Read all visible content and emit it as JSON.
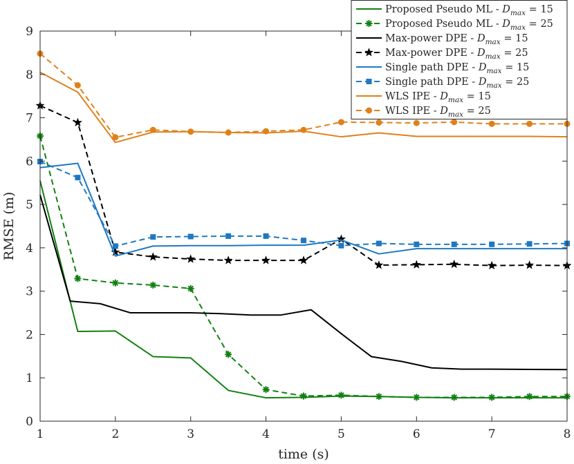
{
  "chart_data": {
    "type": "line",
    "title": "",
    "xlabel": "time (s)",
    "ylabel": "RMSE (m)",
    "xlim": [
      1,
      8
    ],
    "ylim": [
      0,
      9
    ],
    "xticks": [
      "1",
      "2",
      "3",
      "4",
      "5",
      "6",
      "7",
      "8"
    ],
    "yticks": [
      "0",
      "1",
      "2",
      "3",
      "4",
      "5",
      "6",
      "7",
      "8",
      "9"
    ],
    "grid": false,
    "legend_position": "top-right",
    "series": [
      {
        "name": "Proposed Pseudo ML - D_max = 15",
        "legend_prefix": "Proposed Pseudo ML - ",
        "legend_var": "D",
        "legend_sub": "max",
        "legend_suffix": " = 15",
        "color": "#118011",
        "dash": "solid",
        "marker": "none",
        "x": [
          1,
          1.5,
          2,
          2.5,
          3,
          3.5,
          4,
          4.5,
          5,
          5.5,
          6,
          6.5,
          7,
          7.5,
          8
        ],
        "y": [
          5.55,
          2.07,
          2.08,
          1.49,
          1.46,
          0.71,
          0.54,
          0.55,
          0.58,
          0.57,
          0.55,
          0.54,
          0.54,
          0.54,
          0.54
        ]
      },
      {
        "name": "Proposed Pseudo ML - D_max = 25",
        "legend_prefix": "Proposed Pseudo ML - ",
        "legend_var": "D",
        "legend_sub": "max",
        "legend_suffix": " = 25",
        "color": "#118011",
        "dash": "dashed",
        "marker": "asterisk",
        "x": [
          1,
          1.5,
          2,
          2.5,
          3,
          3.5,
          4,
          4.5,
          5,
          5.5,
          6,
          6.5,
          7,
          7.5,
          8
        ],
        "y": [
          6.58,
          3.29,
          3.19,
          3.14,
          3.06,
          1.54,
          0.73,
          0.58,
          0.6,
          0.57,
          0.55,
          0.55,
          0.55,
          0.57,
          0.57
        ]
      },
      {
        "name": "Max-power DPE - D_max = 15",
        "legend_prefix": "Max-power DPE - ",
        "legend_var": "D",
        "legend_sub": "max",
        "legend_suffix": " = 15",
        "color": "#000000",
        "dash": "solid",
        "marker": "none",
        "x": [
          1,
          1.4,
          1.8,
          2.2,
          3,
          3.4,
          3.8,
          4.2,
          4.6,
          5,
          5.4,
          5.8,
          6.2,
          6.6,
          7,
          8
        ],
        "y": [
          5.22,
          2.77,
          2.71,
          2.5,
          2.5,
          2.48,
          2.45,
          2.45,
          2.57,
          2.02,
          1.49,
          1.38,
          1.23,
          1.2,
          1.2,
          1.19
        ]
      },
      {
        "name": "Max-power DPE - D_max = 25",
        "legend_prefix": "Max-power DPE - ",
        "legend_var": "D",
        "legend_sub": "max",
        "legend_suffix": " = 25",
        "color": "#000000",
        "dash": "dashed",
        "marker": "star",
        "x": [
          1,
          1.5,
          2,
          2.5,
          3,
          3.5,
          4,
          4.5,
          5,
          5.5,
          6,
          6.5,
          7,
          7.5,
          8
        ],
        "y": [
          7.28,
          6.89,
          3.9,
          3.79,
          3.74,
          3.71,
          3.71,
          3.71,
          4.2,
          3.6,
          3.61,
          3.62,
          3.59,
          3.6,
          3.59
        ]
      },
      {
        "name": "Single path DPE - D_max = 15",
        "legend_prefix": "Single path DPE - ",
        "legend_var": "D",
        "legend_sub": "max",
        "legend_suffix": " = 15",
        "color": "#1f78c1",
        "dash": "solid",
        "marker": "none",
        "x": [
          1,
          1.5,
          2,
          2.5,
          3,
          3.5,
          4,
          4.5,
          5,
          5.5,
          6,
          6.5,
          7,
          7.5,
          8
        ],
        "y": [
          5.85,
          5.95,
          3.81,
          4.04,
          4.05,
          4.05,
          4.06,
          4.06,
          4.18,
          3.86,
          3.98,
          3.98,
          3.98,
          3.98,
          3.98
        ]
      },
      {
        "name": "Single path DPE - D_max = 25",
        "legend_prefix": "Single path DPE - ",
        "legend_var": "D",
        "legend_sub": "max",
        "legend_suffix": " = 25",
        "color": "#1f78c1",
        "dash": "dashed",
        "marker": "square",
        "x": [
          1,
          1.5,
          2,
          2.5,
          3,
          3.5,
          4,
          4.5,
          5,
          5.5,
          6,
          6.5,
          7,
          7.5,
          8
        ],
        "y": [
          5.99,
          5.62,
          4.04,
          4.25,
          4.26,
          4.27,
          4.27,
          4.17,
          4.05,
          4.1,
          4.08,
          4.08,
          4.08,
          4.09,
          4.1
        ]
      },
      {
        "name": "WLS IPE - D_max = 15",
        "legend_prefix": "WLS IPE - ",
        "legend_var": "D",
        "legend_sub": "max",
        "legend_suffix": " = 15",
        "color": "#e0801a",
        "dash": "solid",
        "marker": "none",
        "x": [
          1,
          1.5,
          2,
          2.5,
          3,
          3.5,
          4,
          4.5,
          5,
          5.5,
          6,
          6.5,
          7,
          7.5,
          8
        ],
        "y": [
          8.05,
          7.59,
          6.43,
          6.67,
          6.68,
          6.66,
          6.65,
          6.69,
          6.56,
          6.65,
          6.57,
          6.57,
          6.57,
          6.57,
          6.56
        ]
      },
      {
        "name": "WLS IPE - D_max = 25",
        "legend_prefix": "WLS IPE - ",
        "legend_var": "D",
        "legend_sub": "max",
        "legend_suffix": " = 25",
        "color": "#e0801a",
        "dash": "dashed",
        "marker": "circle",
        "x": [
          1,
          1.5,
          2,
          2.5,
          3,
          3.5,
          4,
          4.5,
          5,
          5.5,
          6,
          6.5,
          7,
          7.5,
          8
        ],
        "y": [
          8.48,
          7.75,
          6.55,
          6.72,
          6.68,
          6.66,
          6.69,
          6.72,
          6.9,
          6.89,
          6.88,
          6.9,
          6.86,
          6.86,
          6.86
        ]
      }
    ]
  }
}
